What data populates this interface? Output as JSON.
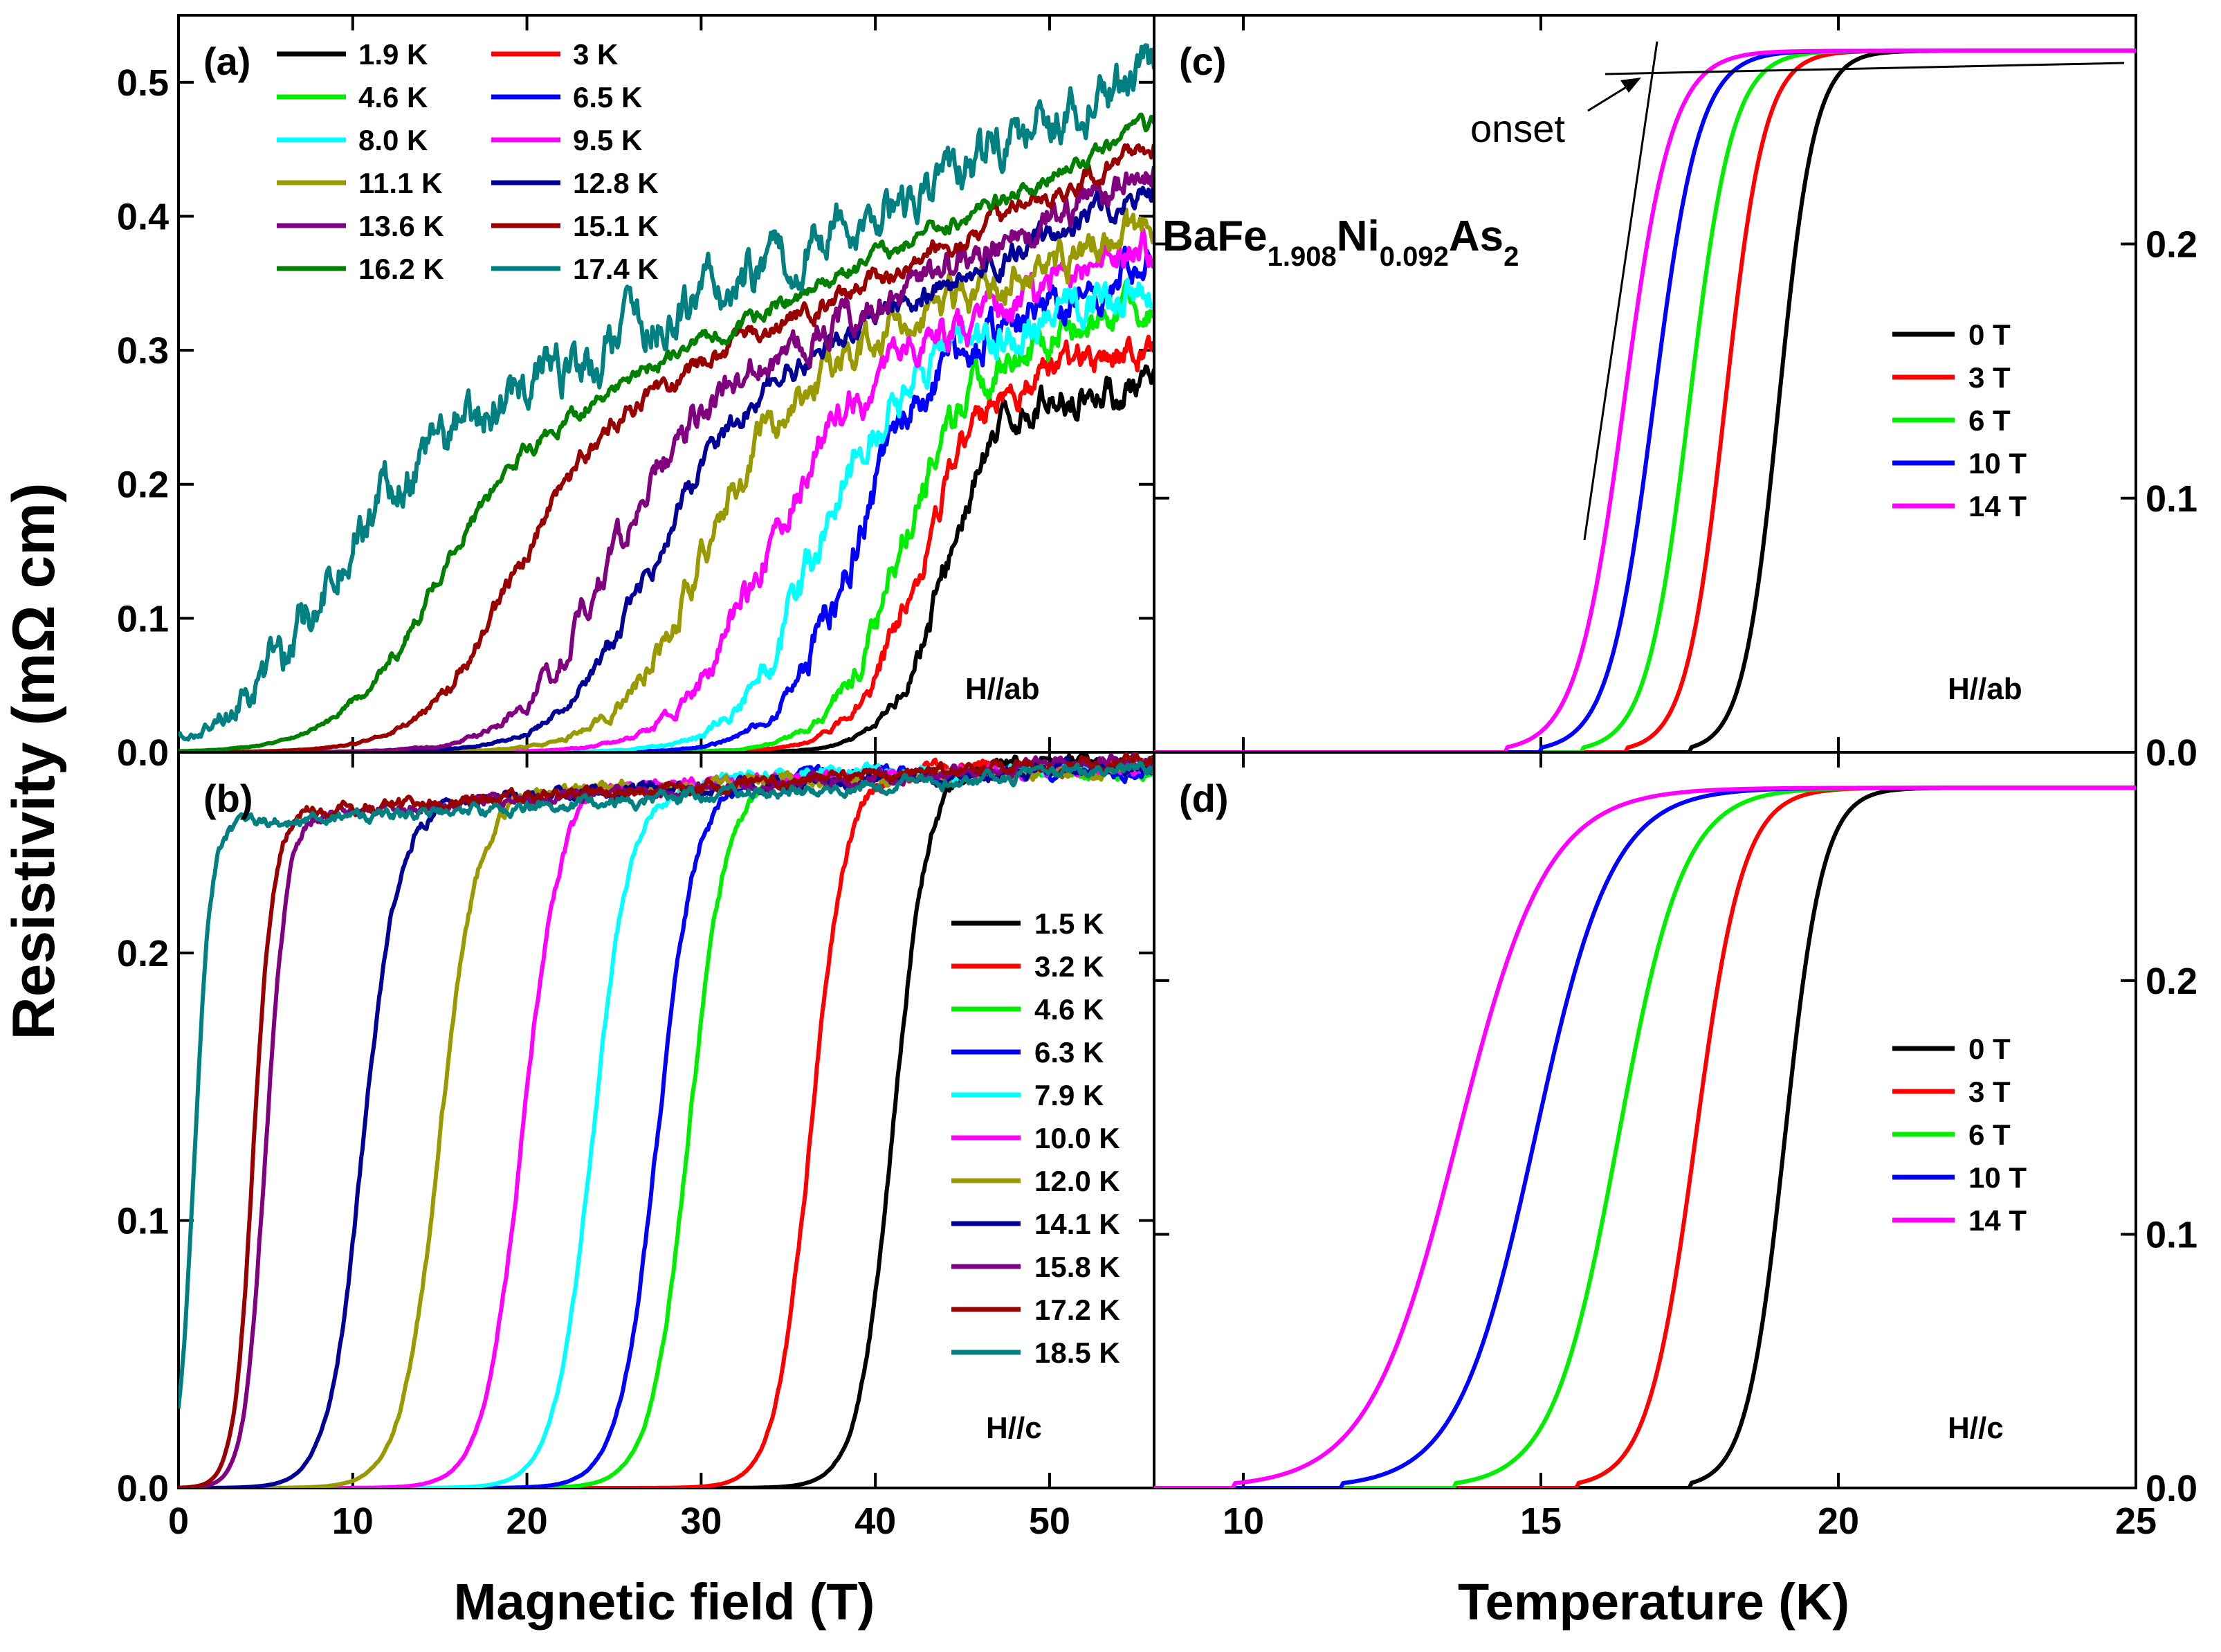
{
  "chart_data": [
    {
      "id": "a",
      "type": "line",
      "panel_label": "(a)",
      "direction": "H//ab",
      "xlabel": "Magnetic field (T)",
      "ylabel": "Resistivity (mΩ cm)",
      "xlim": [
        0,
        56
      ],
      "ylim": [
        0,
        0.55
      ],
      "xticks": [],
      "yticks": [
        "0.0",
        "0.1",
        "0.2",
        "0.3",
        "0.4",
        "0.5"
      ],
      "ytick_values": [
        0,
        0.1,
        0.2,
        0.3,
        0.4,
        0.5
      ],
      "legend_position": "top-left, two columns",
      "series": [
        {
          "name": "1.9 K",
          "color": "#000000",
          "hc": 44.0,
          "width": 1.6,
          "rn": 0.27,
          "slope": 0.0,
          "noise": 0.008
        },
        {
          "name": "3 K",
          "color": "#ff0000",
          "hc": 42.3,
          "width": 1.8,
          "rn": 0.27,
          "slope": 0.0025,
          "noise": 0.008
        },
        {
          "name": "4.6 K",
          "color": "#00ee00",
          "hc": 41.2,
          "width": 1.9,
          "rn": 0.28,
          "slope": 0.0035,
          "noise": 0.009
        },
        {
          "name": "6.5 K",
          "color": "#0000ff",
          "hc": 38.3,
          "width": 2.0,
          "rn": 0.27,
          "slope": 0.0055,
          "noise": 0.01
        },
        {
          "name": "8.0 K",
          "color": "#00ffff",
          "hc": 36.0,
          "width": 2.1,
          "rn": 0.26,
          "slope": 0.0045,
          "noise": 0.01
        },
        {
          "name": "9.5 K",
          "color": "#ff00ff",
          "hc": 33.0,
          "width": 2.3,
          "rn": 0.25,
          "slope": 0.0055,
          "noise": 0.009
        },
        {
          "name": "11.1 K",
          "color": "#999900",
          "hc": 29.3,
          "width": 2.3,
          "rn": 0.25,
          "slope": 0.0055,
          "noise": 0.009
        },
        {
          "name": "12.8 K",
          "color": "#000099",
          "hc": 26.5,
          "width": 2.4,
          "rn": 0.24,
          "slope": 0.0062,
          "noise": 0.006
        },
        {
          "name": "13.6 K",
          "color": "#800080",
          "hc": 24.0,
          "width": 2.4,
          "rn": 0.235,
          "slope": 0.0062,
          "noise": 0.008
        },
        {
          "name": "15.1 K",
          "color": "#990000",
          "hc": 18.5,
          "width": 2.4,
          "rn": 0.22,
          "slope": 0.0062,
          "noise": 0.005
        },
        {
          "name": "16.2 K",
          "color": "#008000",
          "hc": 13.8,
          "width": 2.5,
          "rn": 0.205,
          "slope": 0.0062,
          "noise": 0.004
        },
        {
          "name": "17.4 K",
          "color": "#008080",
          "hc": 7.2,
          "width": 2.6,
          "rn": 0.19,
          "slope": 0.0065,
          "noise": 0.012
        }
      ]
    },
    {
      "id": "b",
      "type": "line",
      "panel_label": "(b)",
      "direction": "H//c",
      "xlabel": "Magnetic field (T)",
      "ylabel": "Resistivity (mΩ cm)",
      "xlim": [
        0,
        56
      ],
      "ylim": [
        0,
        0.275
      ],
      "xticks": [
        "0",
        "10",
        "20",
        "30",
        "40",
        "50"
      ],
      "xtick_values": [
        0,
        10,
        20,
        30,
        40,
        50
      ],
      "yticks": [
        "0.0",
        "0.1",
        "0.2"
      ],
      "ytick_values": [
        0,
        0.1,
        0.2
      ],
      "legend_position": "right",
      "series": [
        {
          "name": "1.5 K",
          "color": "#000000",
          "hc": 41.0,
          "width": 1.0,
          "rn": 0.27,
          "slope": 0.0001,
          "noise": 0.0015
        },
        {
          "name": "3.2 K",
          "color": "#ff0000",
          "hc": 36.3,
          "width": 1.0,
          "rn": 0.268,
          "slope": 0.0001,
          "noise": 0.0015
        },
        {
          "name": "4.6 K",
          "color": "#00ee00",
          "hc": 29.3,
          "width": 1.1,
          "rn": 0.266,
          "slope": 0.0001,
          "noise": 0.0015
        },
        {
          "name": "6.3 K",
          "color": "#0000ff",
          "hc": 27.5,
          "width": 1.1,
          "rn": 0.265,
          "slope": 0.0001,
          "noise": 0.0015
        },
        {
          "name": "7.9 K",
          "color": "#00ffff",
          "hc": 23.8,
          "width": 1.1,
          "rn": 0.264,
          "slope": 0.0002,
          "noise": 0.0015
        },
        {
          "name": "10.0 K",
          "color": "#ff00ff",
          "hc": 19.7,
          "width": 1.1,
          "rn": 0.262,
          "slope": 0.0002,
          "noise": 0.0015
        },
        {
          "name": "12.0 K",
          "color": "#999900",
          "hc": 15.0,
          "width": 1.1,
          "rn": 0.26,
          "slope": 0.0002,
          "noise": 0.0015
        },
        {
          "name": "14.1 K",
          "color": "#000099",
          "hc": 10.6,
          "width": 1.0,
          "rn": 0.256,
          "slope": 0.0003,
          "noise": 0.0015
        },
        {
          "name": "15.8 K",
          "color": "#800080",
          "hc": 5.0,
          "width": 0.6,
          "rn": 0.252,
          "slope": 0.0004,
          "noise": 0.0015
        },
        {
          "name": "17.2 K",
          "color": "#990000",
          "hc": 4.3,
          "width": 0.55,
          "rn": 0.252,
          "slope": 0.0004,
          "noise": 0.0015
        },
        {
          "name": "18.5 K",
          "color": "#008080",
          "hc": 0.9,
          "width": 0.45,
          "rn": 0.247,
          "slope": 0.0004,
          "noise": 0.0015
        }
      ]
    },
    {
      "id": "c",
      "type": "line",
      "panel_label": "(c)",
      "direction": "H//ab",
      "compound": {
        "base": "BaFe",
        "sub1": "1.908",
        "mid": "Ni",
        "sub2": "0.092",
        "end": "As",
        "sub3": "2"
      },
      "annotation": "onset",
      "xlabel": "Temperature (K)",
      "ylabel": "Resistivity (mΩ cm)",
      "xlim": [
        8.5,
        25
      ],
      "ylim": [
        0,
        0.29
      ],
      "xticks": [],
      "yticks": [
        "0.0",
        "0.1",
        "0.2"
      ],
      "ytick_values": [
        0,
        0.1,
        0.2
      ],
      "legend_position": "right",
      "series": [
        {
          "name": "0 T",
          "color": "#000000",
          "tc": 19.0,
          "width": 0.3
        },
        {
          "name": "3 T",
          "color": "#ff0000",
          "tc": 18.1,
          "width": 0.33
        },
        {
          "name": "6 T",
          "color": "#00ee00",
          "tc": 17.5,
          "width": 0.36
        },
        {
          "name": "10 T",
          "color": "#0000ff",
          "tc": 16.9,
          "width": 0.38
        },
        {
          "name": "14 T",
          "color": "#ff00ff",
          "tc": 16.4,
          "width": 0.4
        }
      ]
    },
    {
      "id": "d",
      "type": "line",
      "panel_label": "(d)",
      "direction": "H//c",
      "xlabel": "Temperature (K)",
      "ylabel": "Resistivity (mΩ cm)",
      "xlim": [
        8.5,
        25
      ],
      "ylim": [
        0,
        0.29
      ],
      "xticks": [
        "10",
        "15",
        "20",
        "25"
      ],
      "xtick_values": [
        10,
        15,
        20,
        25
      ],
      "yticks": [
        "0.0",
        "0.1",
        "0.2"
      ],
      "ytick_values": [
        0,
        0.1,
        0.2
      ],
      "legend_position": "right",
      "series": [
        {
          "name": "0 T",
          "color": "#000000",
          "tc": 19.1,
          "width": 0.32
        },
        {
          "name": "3 T",
          "color": "#ff0000",
          "tc": 17.6,
          "width": 0.4
        },
        {
          "name": "6 T",
          "color": "#00ee00",
          "tc": 16.3,
          "width": 0.55
        },
        {
          "name": "10 T",
          "color": "#0000ff",
          "tc": 14.9,
          "width": 0.65
        },
        {
          "name": "14 T",
          "color": "#ff00ff",
          "tc": 13.6,
          "width": 0.75
        }
      ]
    }
  ],
  "labels": {
    "ylabel": "Resistivity (mΩ cm)",
    "xlabel_field": "Magnetic field (T)",
    "xlabel_temp": "Temperature (K)"
  }
}
